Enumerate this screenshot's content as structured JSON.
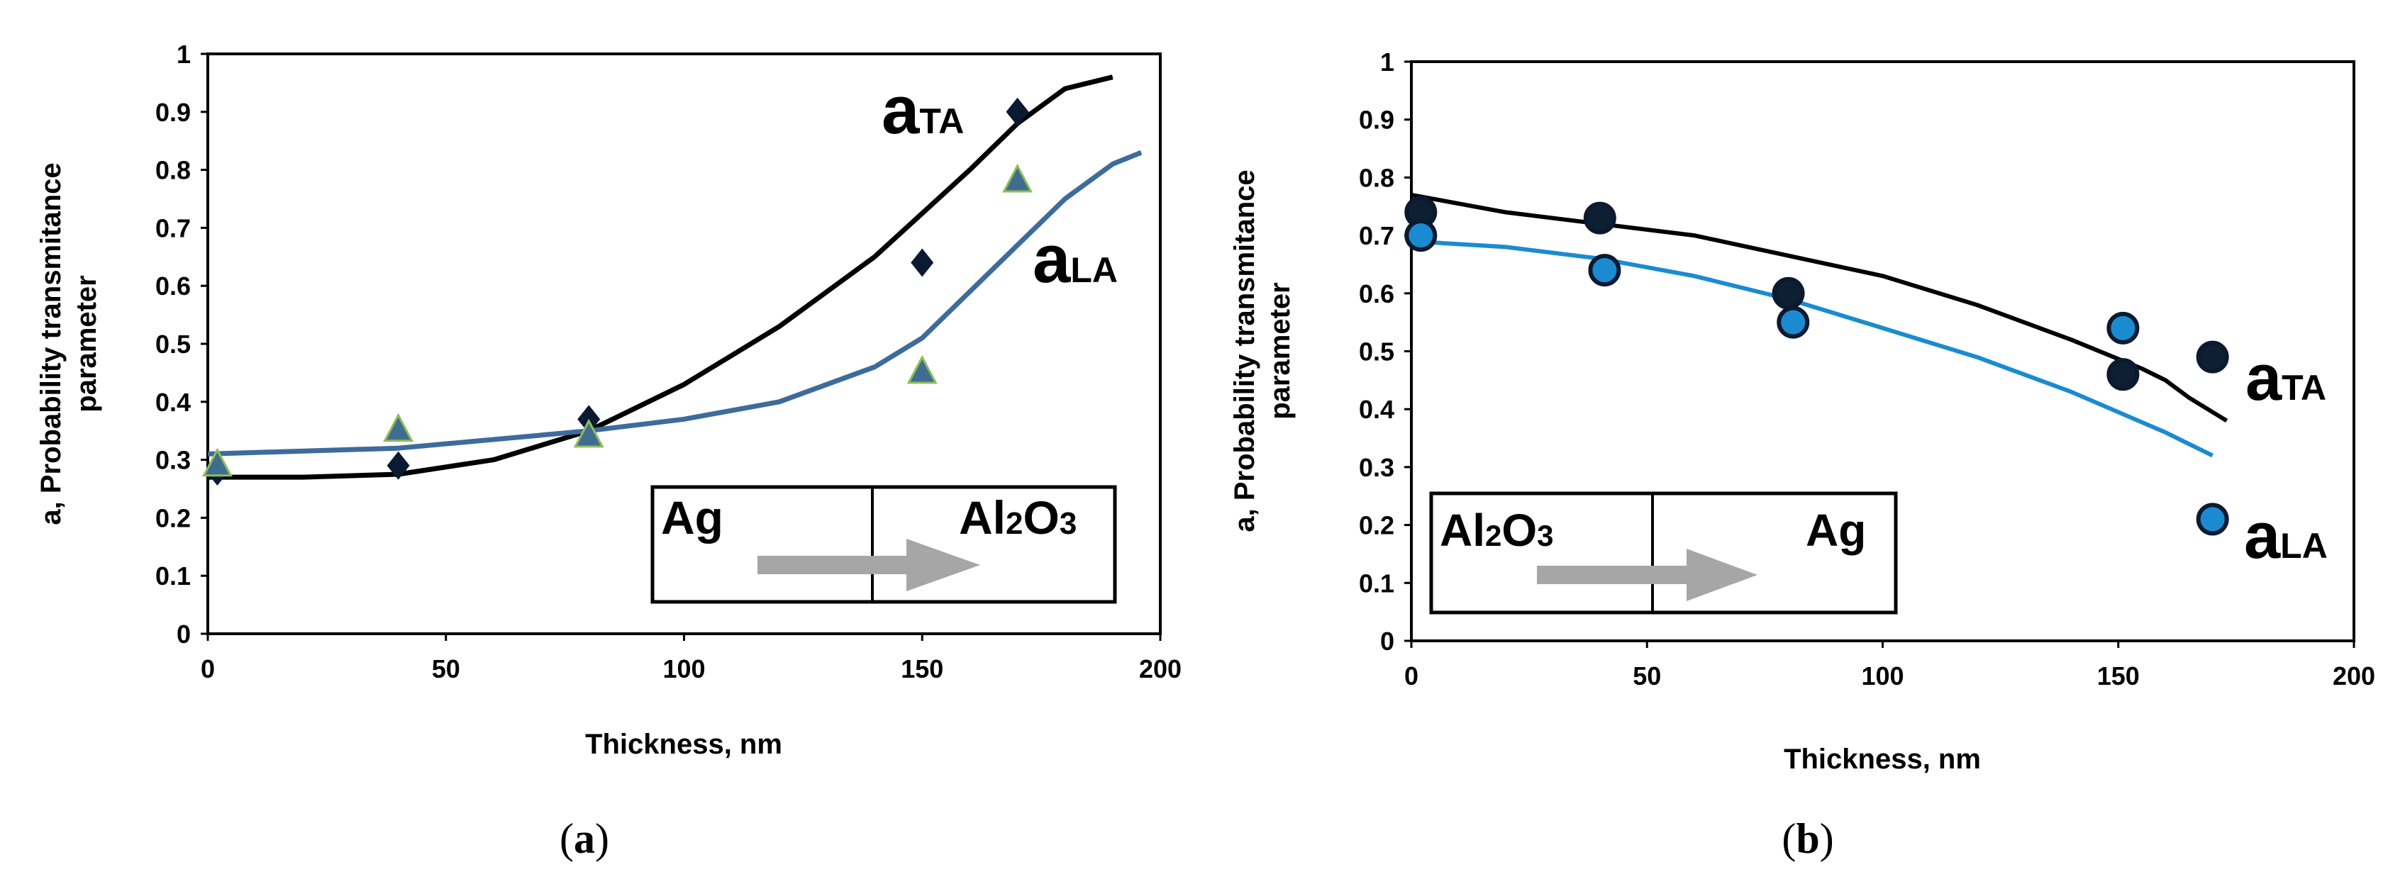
{
  "chart_data": [
    {
      "type": "scatter",
      "panel": "a",
      "caption_open": "(",
      "caption_letter": "a",
      "caption_close": ")",
      "xlabel": "Thickness, nm",
      "ylabel_line1": "a, Probability transmitance",
      "ylabel_line2": "parameter",
      "xlim": [
        0,
        200
      ],
      "ylim": [
        0,
        1
      ],
      "xticks": [
        "0",
        "50",
        "100",
        "150",
        "200"
      ],
      "yticks": [
        "0",
        "0.1",
        "0.2",
        "0.3",
        "0.4",
        "0.5",
        "0.6",
        "0.7",
        "0.8",
        "0.9",
        "1"
      ],
      "series": [
        {
          "name": "aTA",
          "label_main": "a",
          "label_sub": "TA",
          "marker": "diamond",
          "color": "#0a1a33",
          "points": [
            [
              2,
              0.28
            ],
            [
              40,
              0.29
            ],
            [
              80,
              0.37
            ],
            [
              150,
              0.64
            ],
            [
              170,
              0.9
            ]
          ],
          "fit": [
            [
              0,
              0.27
            ],
            [
              20,
              0.27
            ],
            [
              40,
              0.275
            ],
            [
              60,
              0.3
            ],
            [
              80,
              0.35
            ],
            [
              100,
              0.43
            ],
            [
              120,
              0.53
            ],
            [
              140,
              0.65
            ],
            [
              160,
              0.8
            ],
            [
              170,
              0.88
            ],
            [
              180,
              0.94
            ],
            [
              190,
              0.96
            ]
          ],
          "fit_color": "#000000"
        },
        {
          "name": "aLA",
          "label_main": "a",
          "label_sub": "LA",
          "marker": "triangle",
          "color": "#3f6d8f",
          "points": [
            [
              2,
              0.29
            ],
            [
              40,
              0.35
            ],
            [
              80,
              0.34
            ],
            [
              150,
              0.45
            ],
            [
              170,
              0.78
            ]
          ],
          "fit": [
            [
              0,
              0.31
            ],
            [
              40,
              0.32
            ],
            [
              80,
              0.35
            ],
            [
              100,
              0.37
            ],
            [
              120,
              0.4
            ],
            [
              140,
              0.46
            ],
            [
              150,
              0.51
            ],
            [
              160,
              0.59
            ],
            [
              170,
              0.67
            ],
            [
              180,
              0.75
            ],
            [
              190,
              0.81
            ],
            [
              196,
              0.83
            ]
          ],
          "fit_color": "#3d6b9c"
        }
      ],
      "inset": {
        "left": "Ag",
        "right_main": "Al",
        "right_sub1": "2",
        "right_mid": "O",
        "right_sub2": "3",
        "arrow_color": "#a6a6a6"
      }
    },
    {
      "type": "scatter",
      "panel": "b",
      "caption_open": "(",
      "caption_letter": "b",
      "caption_close": ")",
      "xlabel": "Thickness, nm",
      "ylabel_line1": "a, Probability transmitance",
      "ylabel_line2": "parameter",
      "xlim": [
        0,
        200
      ],
      "ylim": [
        0,
        1
      ],
      "xticks": [
        "0",
        "50",
        "100",
        "150",
        "200"
      ],
      "yticks": [
        "0",
        "0.1",
        "0.2",
        "0.3",
        "0.4",
        "0.5",
        "0.6",
        "0.7",
        "0.8",
        "0.9",
        "1"
      ],
      "series": [
        {
          "name": "aTA",
          "label_main": "a",
          "label_sub": "TA",
          "marker": "circle",
          "color": "#0f1f33",
          "points": [
            [
              2,
              0.74
            ],
            [
              40,
              0.73
            ],
            [
              80,
              0.6
            ],
            [
              151,
              0.46
            ],
            [
              170,
              0.49
            ]
          ],
          "fit": [
            [
              0,
              0.77
            ],
            [
              20,
              0.74
            ],
            [
              40,
              0.72
            ],
            [
              60,
              0.7
            ],
            [
              80,
              0.665
            ],
            [
              100,
              0.63
            ],
            [
              120,
              0.58
            ],
            [
              140,
              0.52
            ],
            [
              155,
              0.47
            ],
            [
              160,
              0.45
            ],
            [
              165,
              0.42
            ],
            [
              173,
              0.38
            ]
          ],
          "fit_color": "#000000"
        },
        {
          "name": "aLA",
          "label_main": "a",
          "label_sub": "LA",
          "marker": "circle",
          "color": "#1b8bd1",
          "points": [
            [
              2,
              0.7
            ],
            [
              41,
              0.64
            ],
            [
              81,
              0.55
            ],
            [
              151,
              0.54
            ],
            [
              170,
              0.21
            ]
          ],
          "fit": [
            [
              0,
              0.69
            ],
            [
              20,
              0.68
            ],
            [
              40,
              0.66
            ],
            [
              60,
              0.63
            ],
            [
              80,
              0.59
            ],
            [
              100,
              0.54
            ],
            [
              120,
              0.49
            ],
            [
              140,
              0.43
            ],
            [
              160,
              0.36
            ],
            [
              170,
              0.32
            ]
          ],
          "fit_color": "#1b8bd1"
        }
      ],
      "inset": {
        "left_main": "Al",
        "left_sub1": "2",
        "left_mid": "O",
        "left_sub2": "3",
        "right": "Ag",
        "arrow_color": "#a6a6a6"
      }
    }
  ]
}
